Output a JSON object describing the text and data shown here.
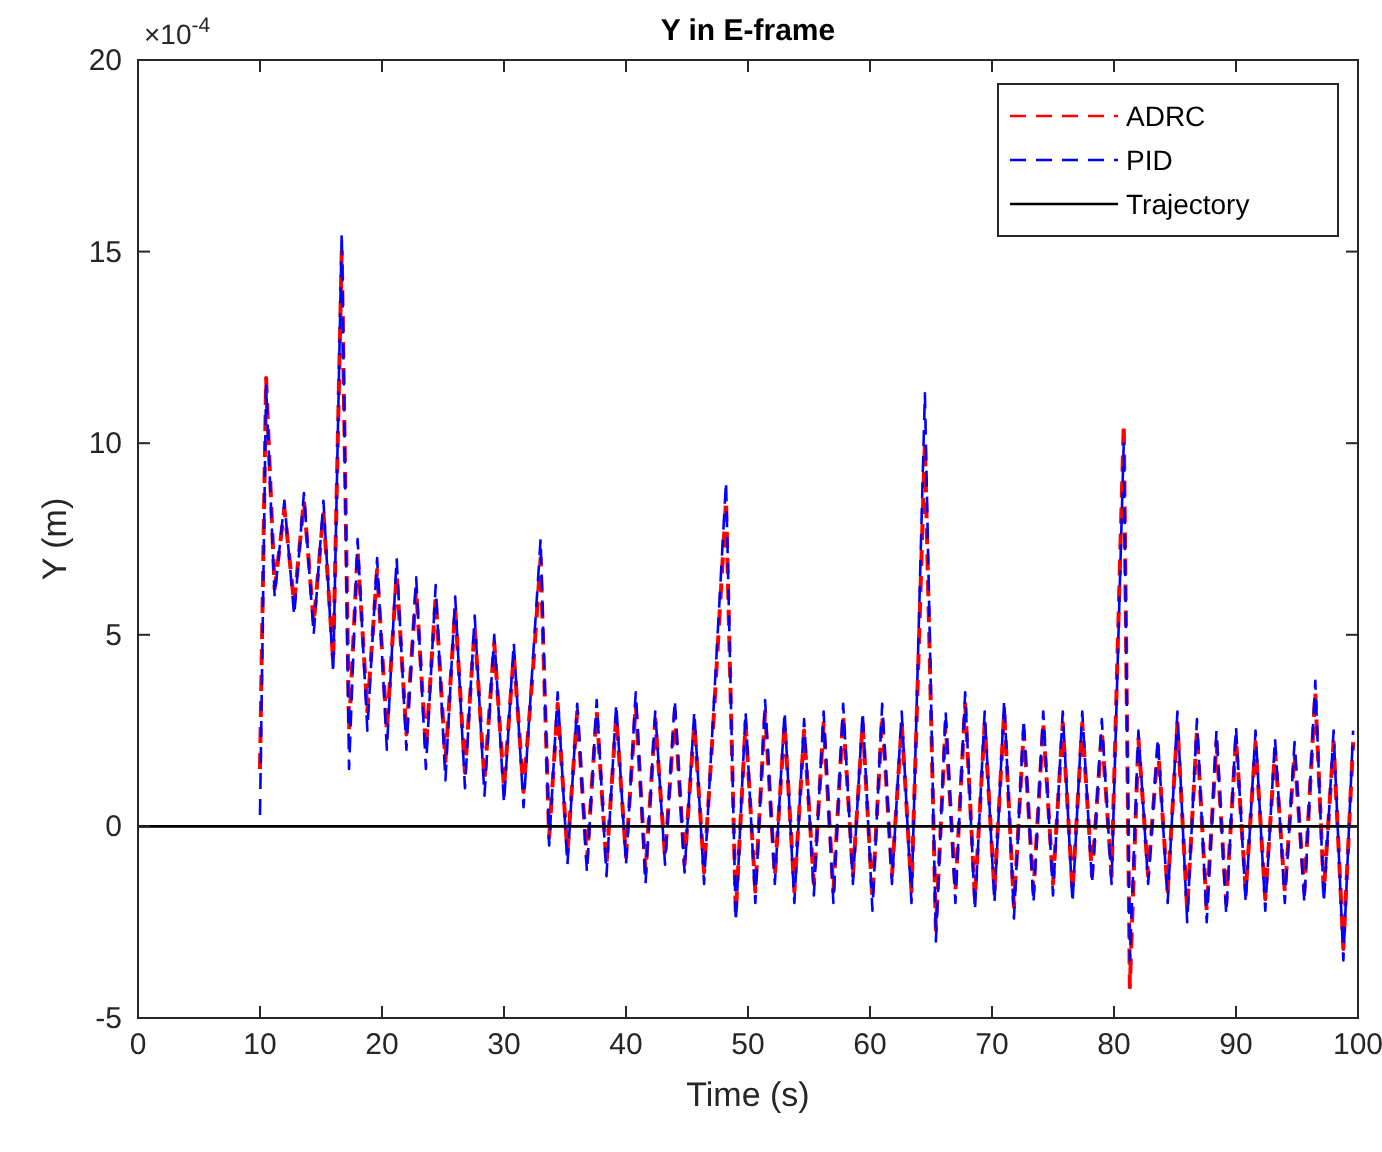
{
  "chart_data": {
    "type": "line",
    "title": "Y in E-frame",
    "xlabel": "Time (s)",
    "ylabel": "Y (m)",
    "annotations": [
      "×10$^{-4}$"
    ],
    "x": [
      10,
      10.5,
      11.2,
      12,
      12.8,
      13.6,
      14.4,
      15.2,
      16,
      16.7,
      17.3,
      18,
      18.8,
      19.6,
      20.4,
      21.2,
      22,
      22.8,
      23.6,
      24.4,
      25.2,
      26,
      26.8,
      27.6,
      28.4,
      29.2,
      30,
      30.8,
      31.6,
      32.4,
      33,
      33.7,
      34.4,
      35.2,
      36,
      36.8,
      37.6,
      38.4,
      39.2,
      40,
      40.8,
      41.6,
      42.4,
      43.2,
      44,
      44.8,
      45.6,
      46.4,
      47.2,
      48.2,
      49,
      49.8,
      50.6,
      51.4,
      52.2,
      53,
      53.8,
      54.6,
      55.4,
      56.2,
      57,
      57.8,
      58.6,
      59.4,
      60.2,
      61,
      61.8,
      62.6,
      63.4,
      64.5,
      65.4,
      66.2,
      67,
      67.8,
      68.6,
      69.4,
      70.2,
      71,
      71.8,
      72.6,
      73.4,
      74.2,
      75,
      75.8,
      76.6,
      77.4,
      78.2,
      79,
      79.8,
      80.8,
      81.3,
      82,
      82.8,
      83.6,
      84.4,
      85.2,
      86,
      86.8,
      87.6,
      88.4,
      89.2,
      90,
      90.8,
      91.6,
      92.4,
      93.2,
      94,
      94.8,
      95.6,
      96.5,
      97.2,
      98,
      98.8,
      99.6
    ],
    "series": [
      {
        "name": "ADRC",
        "color": "#ff0000",
        "line_style": "dashed",
        "values": [
          1.5,
          11.7,
          6.2,
          8.3,
          5.8,
          8.5,
          5.3,
          8.2,
          4.3,
          15,
          2.5,
          7.2,
          3,
          6.7,
          2.5,
          6.6,
          2.4,
          6.2,
          2,
          6,
          1.7,
          5.7,
          1.4,
          5.2,
          1.2,
          4.8,
          1,
          4.5,
          0.9,
          4.2,
          7,
          -0.3,
          3.2,
          -0.7,
          3,
          -0.9,
          3,
          -1,
          2.9,
          -0.8,
          3.2,
          -1.2,
          2.8,
          -0.8,
          3,
          -1,
          2.7,
          -1.2,
          2.9,
          8.5,
          -2.3,
          2.7,
          -1.7,
          3,
          -1.3,
          2.7,
          -1.7,
          2.5,
          -1.5,
          2.7,
          -1.7,
          2.9,
          -1.3,
          2.7,
          -1.9,
          2.9,
          -1.3,
          2.7,
          -1.7,
          10,
          -2.7,
          2.7,
          -1.7,
          3.2,
          -1.9,
          2.7,
          -1.7,
          3,
          -2.1,
          2.5,
          -1.7,
          2.7,
          -1.5,
          2.7,
          -1.7,
          2.7,
          -1.3,
          2.5,
          -1.3,
          10.5,
          -4.2,
          2.3,
          -1.3,
          2.1,
          -1.7,
          2.7,
          -2.2,
          2.5,
          -2.2,
          2.2,
          -2,
          2.3,
          -1.7,
          2.2,
          -1.9,
          2,
          -1.7,
          1.9,
          -1.7,
          3.5,
          -1.7,
          2.2,
          -3.2,
          2.2
        ]
      },
      {
        "name": "PID",
        "color": "#0000ff",
        "line_style": "dashed",
        "values": [
          0.3,
          11.5,
          6,
          8.5,
          5.5,
          8.7,
          5,
          8.5,
          4,
          15.5,
          1.5,
          7.5,
          2.5,
          7,
          2,
          7,
          2,
          6.5,
          1.5,
          6.3,
          1.2,
          6,
          1,
          5.5,
          0.8,
          5,
          0.6,
          4.8,
          0.5,
          4.5,
          7.5,
          -0.5,
          3.5,
          -1,
          3.2,
          -1.2,
          3.3,
          -1.3,
          3.2,
          -1,
          3.5,
          -1.5,
          3,
          -1,
          3.3,
          -1.2,
          3,
          -1.5,
          3.2,
          9,
          -2.5,
          3,
          -2,
          3.3,
          -1.5,
          3,
          -2,
          2.8,
          -1.8,
          3,
          -2,
          3.2,
          -1.5,
          3,
          -2.2,
          3.2,
          -1.5,
          3,
          -2,
          11.3,
          -3,
          3,
          -2,
          3.5,
          -2.2,
          3,
          -2,
          3.3,
          -2.4,
          2.8,
          -2,
          3,
          -1.8,
          3,
          -2,
          3,
          -1.5,
          2.8,
          -1.5,
          10,
          -3.5,
          2.5,
          -1.5,
          2.3,
          -2,
          3,
          -2.5,
          2.8,
          -2.5,
          2.5,
          -2.3,
          2.6,
          -2,
          2.5,
          -2.2,
          2.3,
          -2,
          2.2,
          -2,
          3.8,
          -2,
          2.5,
          -3.5,
          2.5
        ]
      },
      {
        "name": "Trajectory",
        "color": "#000000",
        "line_style": "solid",
        "x": [
          0,
          100
        ],
        "values": [
          0,
          0
        ]
      }
    ],
    "xlim": [
      0,
      100
    ],
    "xticks": [
      0,
      10,
      20,
      30,
      40,
      50,
      60,
      70,
      80,
      90,
      100
    ],
    "ylim": [
      -5,
      20
    ],
    "yticks": [
      -5,
      0,
      5,
      10,
      15,
      20
    ],
    "grid": false,
    "legend": "top right"
  }
}
